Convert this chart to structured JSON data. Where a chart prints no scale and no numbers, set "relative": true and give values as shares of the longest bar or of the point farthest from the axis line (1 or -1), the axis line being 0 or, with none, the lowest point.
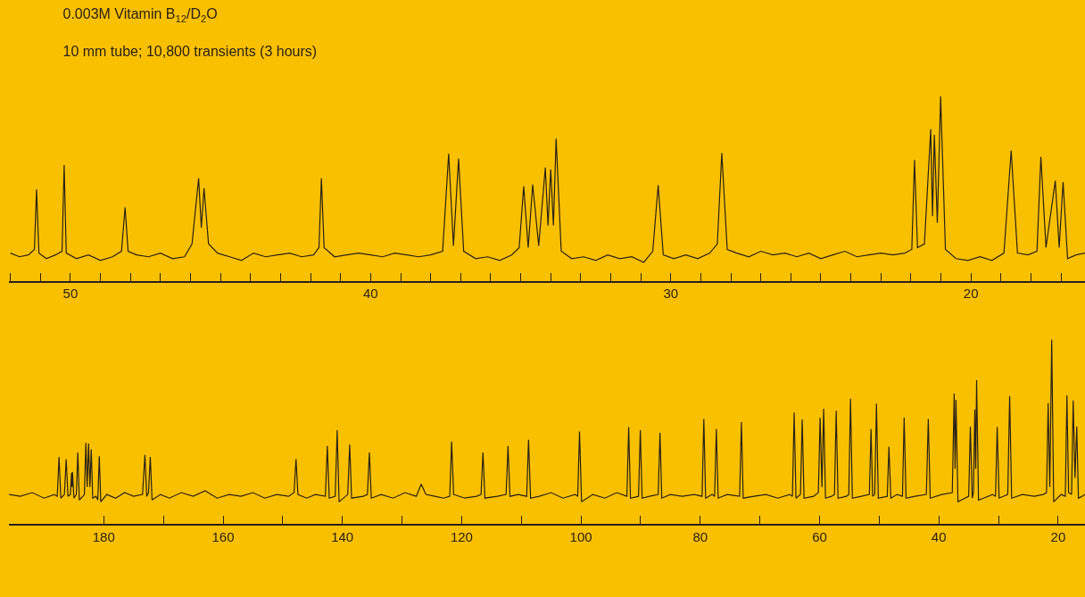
{
  "chart_data": [
    {
      "type": "line",
      "title": "0.003M Vitamin B$_{12}$/D$_{2}$O",
      "subtitle": "10 mm tube; 10,800 transients (3 hours)",
      "relative": true,
      "tick_labels": "x",
      "grid": false,
      "marker": "none",
      "line_style": "solid",
      "xlim": [
        52.05,
        16.2
      ],
      "xticks": [
        {
          "value": 52,
          "label": null
        },
        {
          "value": 51,
          "label": null
        },
        50,
        {
          "value": 49,
          "label": null
        },
        {
          "value": 48,
          "label": null
        },
        {
          "value": 47,
          "label": null
        },
        {
          "value": 46,
          "label": null
        },
        {
          "value": 45,
          "label": null
        },
        {
          "value": 44,
          "label": null
        },
        {
          "value": 43,
          "label": null
        },
        {
          "value": 42,
          "label": null
        },
        {
          "value": 41,
          "label": null
        },
        40,
        {
          "value": 39,
          "label": null
        },
        {
          "value": 38,
          "label": null
        },
        {
          "value": 37,
          "label": null
        },
        {
          "value": 36,
          "label": null
        },
        {
          "value": 35,
          "label": null
        },
        {
          "value": 34,
          "label": null
        },
        {
          "value": 33,
          "label": null
        },
        {
          "value": 32,
          "label": null
        },
        {
          "value": 31,
          "label": null
        },
        30,
        {
          "value": 29,
          "label": null
        },
        {
          "value": 28,
          "label": null
        },
        {
          "value": 27,
          "label": null
        },
        {
          "value": 26,
          "label": null
        },
        {
          "value": 25,
          "label": null
        },
        {
          "value": 24,
          "label": null
        },
        {
          "value": 23,
          "label": null
        },
        {
          "value": 22,
          "label": null
        },
        {
          "value": 21,
          "label": null
        },
        20,
        {
          "value": 19,
          "label": null
        },
        {
          "value": 18,
          "label": null
        },
        {
          "value": 17,
          "label": null
        }
      ],
      "series": [
        {
          "color": "#2b2118",
          "x": [
            52.0,
            51.7,
            51.4,
            51.2,
            51.13,
            51.05,
            50.8,
            50.5,
            50.28,
            50.21,
            50.14,
            49.8,
            49.4,
            49.0,
            48.6,
            48.3,
            48.18,
            48.08,
            47.8,
            47.4,
            47.0,
            46.6,
            46.2,
            45.95,
            45.73,
            45.64,
            45.55,
            45.4,
            45.1,
            44.7,
            44.3,
            43.9,
            43.5,
            43.1,
            42.7,
            42.3,
            41.9,
            41.72,
            41.64,
            41.55,
            41.2,
            40.8,
            40.4,
            40.0,
            39.6,
            39.2,
            38.8,
            38.4,
            38.0,
            37.6,
            37.4,
            37.24,
            37.07,
            36.9,
            36.5,
            36.1,
            35.7,
            35.3,
            35.05,
            34.9,
            34.75,
            34.6,
            34.4,
            34.18,
            34.09,
            34.0,
            33.91,
            33.82,
            33.65,
            33.3,
            32.9,
            32.5,
            32.1,
            31.7,
            31.3,
            30.9,
            30.6,
            30.42,
            30.25,
            29.9,
            29.5,
            29.1,
            28.7,
            28.45,
            28.3,
            28.12,
            27.8,
            27.4,
            27.0,
            26.6,
            26.2,
            25.8,
            25.4,
            25.0,
            24.6,
            24.2,
            23.8,
            23.4,
            23.0,
            22.6,
            22.2,
            21.97,
            21.88,
            21.78,
            21.55,
            21.34,
            21.28,
            21.22,
            21.12,
            21.01,
            20.85,
            20.5,
            20.1,
            19.7,
            19.3,
            18.9,
            18.66,
            18.45,
            18.1,
            17.8,
            17.67,
            17.5,
            17.19,
            17.06,
            16.93,
            16.78,
            16.5,
            16.2
          ],
          "values": [
            0.15,
            0.13,
            0.14,
            0.17,
            0.495,
            0.15,
            0.12,
            0.14,
            0.16,
            0.628,
            0.15,
            0.12,
            0.14,
            0.11,
            0.13,
            0.16,
            0.399,
            0.16,
            0.14,
            0.13,
            0.15,
            0.12,
            0.13,
            0.2,
            0.556,
            0.287,
            0.502,
            0.2,
            0.15,
            0.13,
            0.11,
            0.15,
            0.13,
            0.14,
            0.15,
            0.13,
            0.14,
            0.18,
            0.556,
            0.18,
            0.13,
            0.14,
            0.15,
            0.14,
            0.13,
            0.15,
            0.14,
            0.13,
            0.14,
            0.16,
            0.689,
            0.19,
            0.662,
            0.16,
            0.12,
            0.13,
            0.11,
            0.14,
            0.18,
            0.512,
            0.18,
            0.522,
            0.19,
            0.614,
            0.3,
            0.604,
            0.3,
            0.771,
            0.16,
            0.12,
            0.13,
            0.11,
            0.14,
            0.12,
            0.13,
            0.1,
            0.16,
            0.519,
            0.14,
            0.12,
            0.14,
            0.12,
            0.15,
            0.2,
            0.693,
            0.17,
            0.15,
            0.13,
            0.16,
            0.14,
            0.15,
            0.13,
            0.15,
            0.12,
            0.14,
            0.16,
            0.13,
            0.14,
            0.15,
            0.14,
            0.15,
            0.17,
            0.655,
            0.18,
            0.2,
            0.823,
            0.35,
            0.792,
            0.314,
            1.0,
            0.17,
            0.12,
            0.11,
            0.13,
            0.11,
            0.15,
            0.706,
            0.15,
            0.14,
            0.16,
            0.672,
            0.18,
            0.543,
            0.18,
            0.536,
            0.12,
            0.14,
            0.15
          ]
        }
      ]
    },
    {
      "type": "line",
      "relative": true,
      "tick_labels": "x",
      "grid": false,
      "marker": "none",
      "line_style": "solid",
      "xlim": [
        195.9,
        15.5
      ],
      "xticks": [
        180,
        {
          "value": 170,
          "label": null
        },
        160,
        {
          "value": 150,
          "label": null
        },
        140,
        {
          "value": 130,
          "label": null
        },
        120,
        {
          "value": 110,
          "label": null
        },
        100,
        {
          "value": 90,
          "label": null
        },
        80,
        {
          "value": 70,
          "label": null
        },
        60,
        {
          "value": 50,
          "label": null
        },
        40,
        {
          "value": 30,
          "label": null
        },
        20
      ],
      "series": [
        {
          "color": "#2b2118",
          "x": [
            195.9,
            194,
            192,
            190,
            188.3,
            187.8,
            187.5,
            187.2,
            186.6,
            186.3,
            186.0,
            185.6,
            185.4,
            185.32,
            185.25,
            185.0,
            184.6,
            184.35,
            184.1,
            183.5,
            183.25,
            183.0,
            182.78,
            182.55,
            182.32,
            182.1,
            181.85,
            181.3,
            181.0,
            180.75,
            180.5,
            179.5,
            178,
            176.5,
            175,
            173.5,
            173.1,
            172.8,
            172.5,
            172.2,
            171.9,
            170.5,
            169,
            167,
            165,
            163,
            161,
            159,
            157,
            155,
            153,
            151,
            149,
            148.1,
            147.77,
            147.45,
            146,
            144.5,
            142.85,
            142.52,
            142.2,
            141.2,
            140.87,
            140.55,
            139.1,
            138.77,
            138.45,
            136.5,
            135.8,
            135.47,
            135.15,
            133.5,
            131.5,
            129.5,
            127.6,
            126.78,
            126.0,
            124.5,
            123,
            122.0,
            121.68,
            121.35,
            119.5,
            117.5,
            116.75,
            116.43,
            116.1,
            114,
            112.55,
            112.23,
            111.9,
            110.5,
            109.1,
            108.79,
            108.45,
            107,
            105,
            103,
            101,
            100.55,
            100.24,
            99.9,
            98,
            96,
            94,
            92.3,
            92.0,
            91.7,
            90.35,
            90.05,
            89.75,
            88.5,
            87.05,
            86.75,
            86.45,
            85,
            83,
            81,
            79.7,
            79.4,
            79.1,
            78.0,
            77.6,
            77.3,
            77.0,
            75.5,
            73.4,
            73.1,
            72.8,
            71,
            69,
            67,
            65,
            64.55,
            64.26,
            63.95,
            63.2,
            62.91,
            62.6,
            61,
            60.2,
            59.91,
            59.6,
            59.31,
            59.0,
            58,
            57.5,
            57.21,
            56.9,
            55.5,
            55.1,
            54.81,
            54.5,
            53,
            51.65,
            51.37,
            51.1,
            50.75,
            50.46,
            50.15,
            48.65,
            48.37,
            48.05,
            47,
            46.1,
            45.82,
            45.5,
            44,
            42.1,
            41.77,
            41.45,
            39.5,
            37.75,
            37.43,
            37.28,
            37.13,
            36.8,
            35,
            34.72,
            34.4,
            34.2,
            33.97,
            33.82,
            33.67,
            33.35,
            32.5,
            31,
            30.5,
            30.22,
            29.9,
            28.45,
            28.13,
            27.8,
            26,
            24,
            22.5,
            21.95,
            21.68,
            21.4,
            21.08,
            20.75,
            19.5,
            18.8,
            18.53,
            18.25,
            17.75,
            17.48,
            17.18,
            16.88,
            16.6,
            16.0,
            15.5
          ],
          "values": [
            0.16,
            0.15,
            0.17,
            0.14,
            0.16,
            0.15,
            0.364,
            0.14,
            0.16,
            0.351,
            0.15,
            0.16,
            0.278,
            0.2,
            0.282,
            0.14,
            0.16,
            0.388,
            0.13,
            0.15,
            0.16,
            0.44,
            0.2,
            0.436,
            0.2,
            0.405,
            0.14,
            0.15,
            0.13,
            0.368,
            0.12,
            0.16,
            0.14,
            0.17,
            0.15,
            0.16,
            0.375,
            0.15,
            0.17,
            0.364,
            0.13,
            0.16,
            0.14,
            0.17,
            0.15,
            0.18,
            0.14,
            0.16,
            0.15,
            0.17,
            0.14,
            0.16,
            0.15,
            0.17,
            0.351,
            0.16,
            0.14,
            0.16,
            0.15,
            0.423,
            0.14,
            0.15,
            0.509,
            0.12,
            0.16,
            0.43,
            0.14,
            0.15,
            0.16,
            0.388,
            0.14,
            0.16,
            0.14,
            0.17,
            0.15,
            0.216,
            0.16,
            0.15,
            0.14,
            0.15,
            0.447,
            0.16,
            0.14,
            0.15,
            0.16,
            0.388,
            0.14,
            0.15,
            0.16,
            0.423,
            0.15,
            0.16,
            0.15,
            0.457,
            0.14,
            0.15,
            0.17,
            0.14,
            0.16,
            0.15,
            0.502,
            0.12,
            0.16,
            0.14,
            0.17,
            0.15,
            0.526,
            0.14,
            0.15,
            0.509,
            0.14,
            0.15,
            0.16,
            0.495,
            0.14,
            0.16,
            0.15,
            0.16,
            0.15,
            0.57,
            0.14,
            0.16,
            0.15,
            0.515,
            0.14,
            0.16,
            0.15,
            0.553,
            0.14,
            0.15,
            0.16,
            0.14,
            0.16,
            0.15,
            0.605,
            0.14,
            0.16,
            0.567,
            0.14,
            0.15,
            0.17,
            0.577,
            0.2,
            0.625,
            0.14,
            0.15,
            0.16,
            0.615,
            0.14,
            0.15,
            0.16,
            0.68,
            0.14,
            0.15,
            0.16,
            0.515,
            0.15,
            0.16,
            0.653,
            0.14,
            0.15,
            0.419,
            0.14,
            0.16,
            0.15,
            0.577,
            0.14,
            0.15,
            0.16,
            0.57,
            0.14,
            0.16,
            0.17,
            0.708,
            0.3,
            0.674,
            0.12,
            0.15,
            0.529,
            0.14,
            0.17,
            0.622,
            0.3,
            0.78,
            0.13,
            0.14,
            0.16,
            0.15,
            0.526,
            0.14,
            0.16,
            0.694,
            0.14,
            0.16,
            0.15,
            0.16,
            0.17,
            0.656,
            0.2,
            1.0,
            0.12,
            0.16,
            0.15,
            0.698,
            0.17,
            0.16,
            0.67,
            0.25,
            0.529,
            0.14,
            0.15,
            0.16
          ]
        }
      ]
    }
  ]
}
